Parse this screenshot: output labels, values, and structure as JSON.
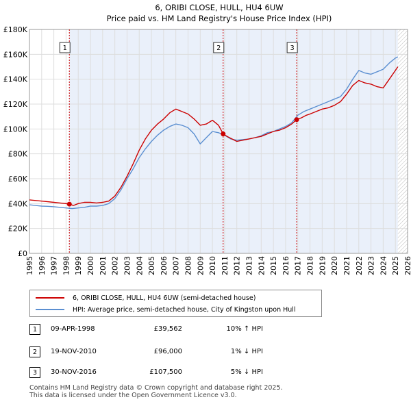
{
  "chart_data": {
    "type": "line",
    "title": "6, ORIBI CLOSE, HULL, HU4 6UW",
    "subtitle": "Price paid vs. HM Land Registry's House Price Index (HPI)",
    "xlim": [
      1995,
      2026
    ],
    "ylim": [
      0,
      180000
    ],
    "x_ticks": [
      "1995",
      "1996",
      "1997",
      "1998",
      "1999",
      "2000",
      "2001",
      "2002",
      "2003",
      "2004",
      "2005",
      "2006",
      "2007",
      "2008",
      "2009",
      "2010",
      "2011",
      "2012",
      "2013",
      "2014",
      "2015",
      "2016",
      "2017",
      "2018",
      "2019",
      "2020",
      "2021",
      "2022",
      "2023",
      "2024",
      "2025",
      "2026"
    ],
    "y_ticks": [
      {
        "value": 0,
        "label": "£0"
      },
      {
        "value": 20000,
        "label": "£20K"
      },
      {
        "value": 40000,
        "label": "£40K"
      },
      {
        "value": 60000,
        "label": "£60K"
      },
      {
        "value": 80000,
        "label": "£80K"
      },
      {
        "value": 100000,
        "label": "£100K"
      },
      {
        "value": 120000,
        "label": "£120K"
      },
      {
        "value": 140000,
        "label": "£140K"
      },
      {
        "value": 160000,
        "label": "£160K"
      },
      {
        "value": 180000,
        "label": "£180K"
      }
    ],
    "data_end_year": 2025.2,
    "series": [
      {
        "name": "6, ORIBI CLOSE, HULL, HU4 6UW (semi-detached house)",
        "color": "#cc0000",
        "x": [
          1995.0,
          1995.5,
          1996.0,
          1996.5,
          1997.0,
          1997.5,
          1998.0,
          1998.27,
          1998.6,
          1999.0,
          1999.5,
          2000.0,
          2000.5,
          2001.0,
          2001.5,
          2002.0,
          2002.5,
          2003.0,
          2003.5,
          2004.0,
          2004.5,
          2005.0,
          2005.5,
          2006.0,
          2006.5,
          2007.0,
          2007.5,
          2008.0,
          2008.5,
          2009.0,
          2009.5,
          2010.0,
          2010.5,
          2010.88,
          2011.2,
          2011.6,
          2012.0,
          2012.5,
          2013.0,
          2013.5,
          2014.0,
          2014.5,
          2015.0,
          2015.5,
          2016.0,
          2016.5,
          2016.91,
          2017.3,
          2017.7,
          2018.0,
          2018.5,
          2019.0,
          2019.5,
          2020.0,
          2020.5,
          2021.0,
          2021.5,
          2022.0,
          2022.5,
          2023.0,
          2023.5,
          2024.0,
          2024.5,
          2025.0,
          2025.2
        ],
        "y": [
          43000,
          42500,
          42000,
          41500,
          41000,
          40500,
          40000,
          39562,
          38500,
          40000,
          41000,
          41000,
          40500,
          41000,
          42000,
          46000,
          53000,
          62000,
          72000,
          83000,
          92000,
          99000,
          104000,
          108000,
          113000,
          116000,
          114000,
          112000,
          108000,
          103000,
          104000,
          107000,
          103000,
          96000,
          94000,
          92000,
          90000,
          91000,
          92000,
          93000,
          94000,
          96000,
          98000,
          99000,
          101000,
          104000,
          107500,
          109000,
          111000,
          112000,
          114000,
          116000,
          117000,
          119000,
          122000,
          128000,
          135000,
          139000,
          137000,
          136000,
          134000,
          133000,
          140000,
          147000,
          150000
        ]
      },
      {
        "name": "HPI: Average price, semi-detached house, City of Kingston upon Hull",
        "color": "#5b8fd1",
        "x": [
          1995.0,
          1995.5,
          1996.0,
          1996.5,
          1997.0,
          1997.5,
          1998.0,
          1998.5,
          1999.0,
          1999.5,
          2000.0,
          2000.5,
          2001.0,
          2001.5,
          2002.0,
          2002.5,
          2003.0,
          2003.5,
          2004.0,
          2004.5,
          2005.0,
          2005.5,
          2006.0,
          2006.5,
          2007.0,
          2007.5,
          2008.0,
          2008.5,
          2009.0,
          2009.5,
          2010.0,
          2010.5,
          2011.0,
          2011.5,
          2012.0,
          2012.5,
          2013.0,
          2013.5,
          2014.0,
          2014.5,
          2015.0,
          2015.5,
          2016.0,
          2016.5,
          2017.0,
          2017.5,
          2018.0,
          2018.5,
          2019.0,
          2019.5,
          2020.0,
          2020.5,
          2021.0,
          2021.5,
          2022.0,
          2022.5,
          2023.0,
          2023.5,
          2024.0,
          2024.5,
          2025.0,
          2025.2
        ],
        "y": [
          39000,
          38500,
          38000,
          37800,
          37500,
          37000,
          36500,
          36000,
          36500,
          37000,
          38000,
          38000,
          38500,
          40000,
          44000,
          51000,
          60000,
          68000,
          77000,
          84000,
          90000,
          95000,
          99000,
          102000,
          104000,
          103000,
          101000,
          96000,
          88000,
          93000,
          98000,
          97000,
          95000,
          92000,
          91000,
          91500,
          92000,
          93000,
          94500,
          97000,
          98000,
          100000,
          102000,
          105000,
          111000,
          114000,
          116000,
          118000,
          120000,
          122000,
          124000,
          126000,
          132000,
          140000,
          147000,
          145000,
          144000,
          146000,
          148000,
          153000,
          157000,
          158000
        ]
      }
    ],
    "sales": [
      {
        "num": "1",
        "x": 1998.27,
        "y": 39562
      },
      {
        "num": "2",
        "x": 2010.88,
        "y": 96000
      },
      {
        "num": "3",
        "x": 2016.91,
        "y": 107500
      }
    ]
  },
  "legend": {
    "property_label": "6, ORIBI CLOSE, HULL, HU4 6UW (semi-detached house)",
    "hpi_label": "HPI: Average price, semi-detached house, City of Kingston upon Hull",
    "property_color": "#cc0000",
    "hpi_color": "#5b8fd1"
  },
  "sales_table": [
    {
      "num": "1",
      "date": "09-APR-1998",
      "price": "£39,562",
      "hpi": "10% ↑ HPI"
    },
    {
      "num": "2",
      "date": "19-NOV-2010",
      "price": "£96,000",
      "hpi": "1% ↓ HPI"
    },
    {
      "num": "3",
      "date": "30-NOV-2016",
      "price": "£107,500",
      "hpi": "5% ↓ HPI"
    }
  ],
  "footer": {
    "line1": "Contains HM Land Registry data © Crown copyright and database right 2025.",
    "line2": "This data is licensed under the Open Government Licence v3.0."
  }
}
